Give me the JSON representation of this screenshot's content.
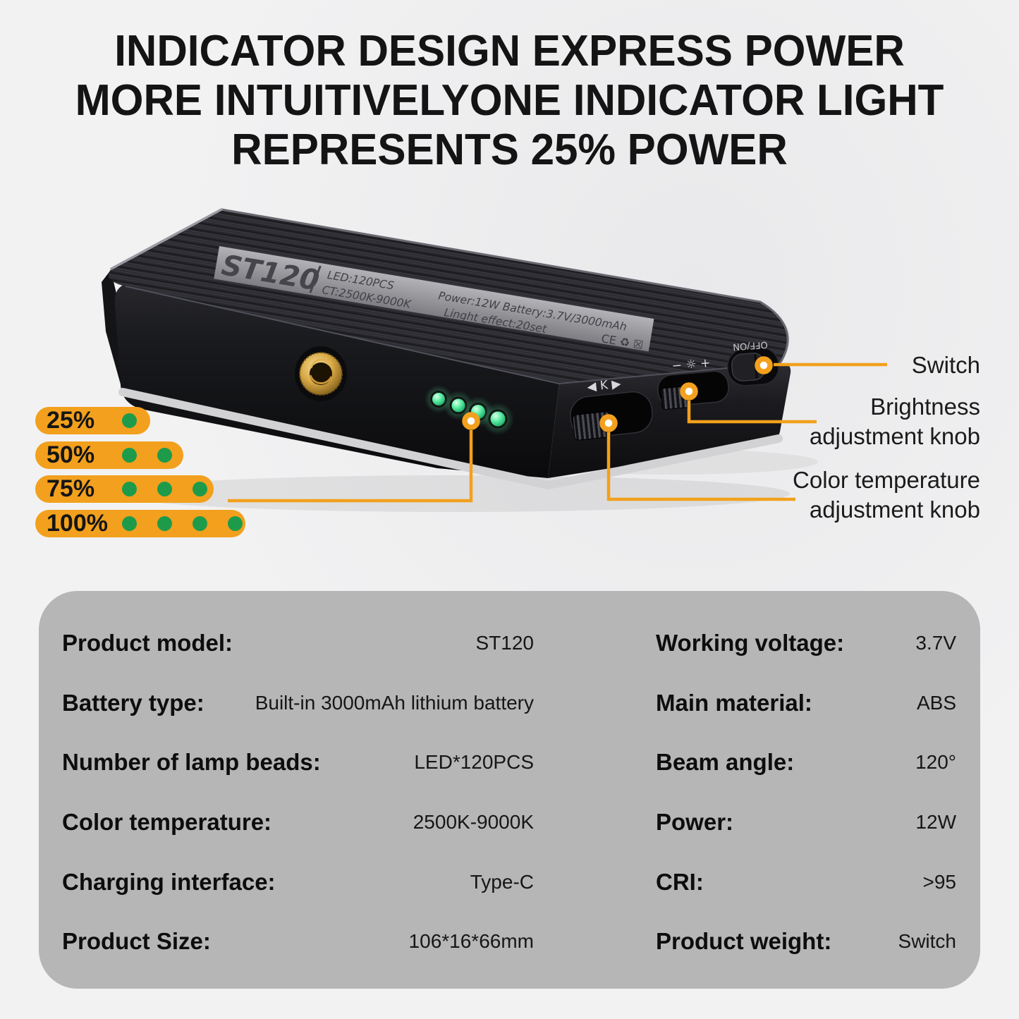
{
  "title": {
    "line1": "INDICATOR DESIGN EXPRESS POWER",
    "line2": "MORE INTUITIVELYONE INDICATOR LIGHT",
    "line3": "REPRESENTS 25% POWER"
  },
  "device": {
    "model": "ST120",
    "spec_led": "LED:120PCS",
    "spec_ct": "CT:2500K-9000K",
    "spec_power_battery": "Power:12W   Battery:3.7V/3000mAh",
    "spec_effect": "Linght effect:20set",
    "certs": "CE ♻ ☒",
    "switch_text": "OFF/ON",
    "knob_k_marking": "◀ K ▶",
    "knob_brightness_marking": "− ☼ +"
  },
  "power_legend": {
    "items": [
      {
        "label": "25%",
        "dots": 1
      },
      {
        "label": "50%",
        "dots": 2
      },
      {
        "label": "75%",
        "dots": 3
      },
      {
        "label": "100%",
        "dots": 4
      }
    ]
  },
  "callouts": {
    "switch": "Switch",
    "brightness": [
      "Brightness",
      "adjustment knob"
    ],
    "color_temp": [
      "Color temperature",
      "adjustment knob"
    ]
  },
  "specs": {
    "left": [
      {
        "label": "Product model:",
        "value": "ST120"
      },
      {
        "label": "Battery type:",
        "value": "Built-in 3000mAh lithium battery"
      },
      {
        "label": "Number of lamp beads:",
        "value": "LED*120PCS"
      },
      {
        "label": "Color temperature:",
        "value": "2500K-9000K"
      },
      {
        "label": "Charging interface:",
        "value": "Type-C"
      },
      {
        "label": "Product Size:",
        "value": "106*16*66mm"
      }
    ],
    "right": [
      {
        "label": "Working voltage:",
        "value": "3.7V"
      },
      {
        "label": "Main material:",
        "value": "ABS"
      },
      {
        "label": "Beam angle:",
        "value": "120°"
      },
      {
        "label": "Power:",
        "value": "12W"
      },
      {
        "label": "CRI:",
        "value": ">95"
      },
      {
        "label": "Product weight:",
        "value": "Switch"
      }
    ]
  },
  "colors": {
    "accent_orange": "#F2A01D",
    "dot_green": "#1D9B4A",
    "led_green": "#45E095",
    "table_bg": "#B6B6B7",
    "page_bg": "#F2F2F3"
  }
}
